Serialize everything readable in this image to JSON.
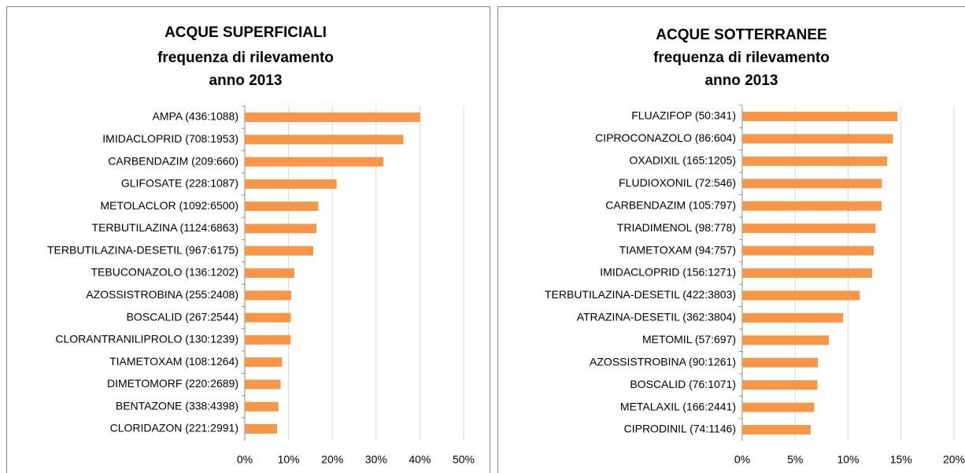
{
  "chart_data": [
    {
      "type": "bar",
      "orientation": "horizontal",
      "title": [
        "ACQUE SUPERFICIALI",
        "frequenza di rilevamento",
        "anno 2013"
      ],
      "categories": [
        "AMPA (436:1088)",
        "IMIDACLOPRID (708:1953)",
        "CARBENDAZIM (209:660)",
        "GLIFOSATE (228:1087)",
        "METOLACLOR (1092:6500)",
        "TERBUTILAZINA (1124:6863)",
        "TERBUTILAZINA-DESETIL (967:6175)",
        "TEBUCONAZOLO (136:1202)",
        "AZOSSISTROBINA (255:2408)",
        "BOSCALID (267:2544)",
        "CLORANTRANILIPROLO (130:1239)",
        "TIAMETOXAM (108:1264)",
        "DIMETOMORF (220:2689)",
        "BENTAZONE (338:4398)",
        "CLORIDAZON (221:2991)"
      ],
      "values": [
        40.07,
        36.25,
        31.67,
        20.98,
        16.8,
        16.38,
        15.66,
        11.31,
        10.59,
        10.5,
        10.49,
        8.54,
        8.18,
        7.69,
        7.39
      ],
      "color": "#f79646",
      "xlim": [
        0,
        50
      ],
      "xticks": [
        {
          "value": 0,
          "label": "0%"
        },
        {
          "value": 10,
          "label": "10%"
        },
        {
          "value": 20,
          "label": "20%"
        },
        {
          "value": 30,
          "label": "30%"
        },
        {
          "value": 40,
          "label": "40%"
        },
        {
          "value": 50,
          "label": "50%"
        }
      ],
      "grid": true
    },
    {
      "type": "bar",
      "orientation": "horizontal",
      "title": [
        "ACQUE SOTTERRANEE",
        "frequenza di rilevamento",
        "anno 2013"
      ],
      "categories": [
        "FLUAZIFOP (50:341)",
        "CIPROCONAZOLO (86:604)",
        "OXADIXIL (165:1205)",
        "FLUDIOXONIL (72:546)",
        "CARBENDAZIM (105:797)",
        "TRIADIMENOL (98:778)",
        "TIAMETOXAM (94:757)",
        "IMIDACLOPRID (156:1271)",
        "TERBUTILAZINA-DESETIL (422:3803)",
        "ATRAZINA-DESETIL (362:3804)",
        "METOMIL (57:697)",
        "AZOSSISTROBINA (90:1261)",
        "BOSCALID (76:1071)",
        "METALAXIL (166:2441)",
        "CIPRODINIL (74:1146)"
      ],
      "values": [
        14.66,
        14.24,
        13.69,
        13.19,
        13.17,
        12.6,
        12.42,
        12.27,
        11.1,
        9.52,
        8.18,
        7.14,
        7.1,
        6.8,
        6.46
      ],
      "color": "#f79646",
      "xlim": [
        0,
        20
      ],
      "xticks": [
        {
          "value": 0,
          "label": "0%"
        },
        {
          "value": 5,
          "label": "5%"
        },
        {
          "value": 10,
          "label": "10%"
        },
        {
          "value": 15,
          "label": "15%"
        },
        {
          "value": 20,
          "label": "20%"
        }
      ],
      "grid": true
    }
  ]
}
